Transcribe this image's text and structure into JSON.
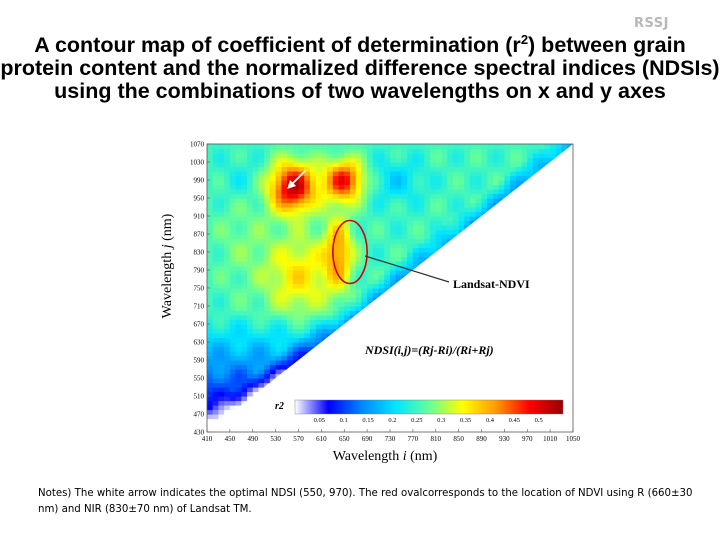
{
  "logo": "RSSJ",
  "title": {
    "before_sup": "A contour map of coefficient of determination (r",
    "sup": "2",
    "after_sup": ") between grain protein content and the normalized difference spectral indices (NDSIs) using the combinations of two wavelengths on x and y axes"
  },
  "chart_data": {
    "type": "heatmap",
    "xlabel": "Wavelength i (nm)",
    "ylabel": "Wavelength j (nm)",
    "xlim": [
      410,
      1050
    ],
    "ylim": [
      430,
      1070
    ],
    "x_ticks": [
      410,
      450,
      490,
      530,
      570,
      610,
      650,
      690,
      730,
      770,
      810,
      850,
      890,
      930,
      970,
      1010,
      1050
    ],
    "y_ticks": [
      430,
      470,
      510,
      550,
      590,
      630,
      670,
      710,
      750,
      790,
      830,
      870,
      910,
      950,
      990,
      1030,
      1070
    ],
    "colorbar": {
      "label": "r2",
      "ticks": [
        "0.05",
        "0.1",
        "0.15",
        "0.2",
        "0.25",
        "0.3",
        "0.35",
        "0.4",
        "0.45",
        "0.5"
      ],
      "min": 0.0,
      "max": 0.55,
      "colors": [
        "#ffffff",
        "#0000ff",
        "#0088ff",
        "#00e5ff",
        "#66ff99",
        "#ffff00",
        "#ff9900",
        "#ff0000",
        "#990000"
      ]
    },
    "annotations": {
      "formula": "NDSI(i,j)=(Rj-Ri)/(Ri+Rj)",
      "landsat": "Landsat-NDVI",
      "optimal_point": {
        "x": 550,
        "y": 970
      },
      "ndvi_region": {
        "x_center": 660,
        "x_halfwidth": 30,
        "y_center": 830,
        "y_halfwidth": 70
      }
    },
    "hotspots": [
      {
        "x": 560,
        "y": 975,
        "sx": 40,
        "sy": 55,
        "r2": 0.52
      },
      {
        "x": 650,
        "y": 990,
        "sx": 35,
        "sy": 45,
        "r2": 0.48
      },
      {
        "x": 640,
        "y": 830,
        "sx": 25,
        "sy": 80,
        "r2": 0.4
      },
      {
        "x": 570,
        "y": 780,
        "sx": 60,
        "sy": 90,
        "r2": 0.36
      },
      {
        "x": 470,
        "y": 870,
        "sx": 50,
        "sy": 120,
        "r2": 0.28
      },
      {
        "x": 470,
        "y": 990,
        "sx": 40,
        "sy": 60,
        "r2": 0.22
      },
      {
        "x": 740,
        "y": 990,
        "sx": 50,
        "sy": 50,
        "r2": 0.2
      }
    ],
    "base_r2": 0.25
  },
  "notes": "Notes) The white arrow indicates the optimal NDSI (550, 970). The red ovalcorresponds to the location of NDVI using R (660±30 nm) and NIR (830±70 nm) of Landsat TM."
}
